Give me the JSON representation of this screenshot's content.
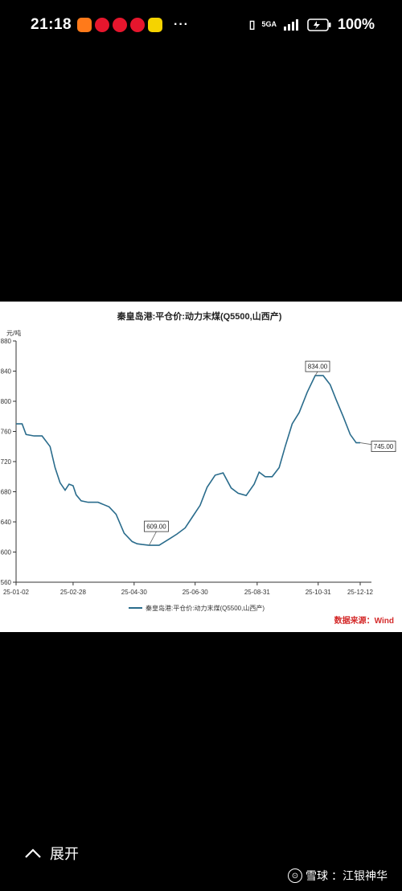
{
  "status_bar": {
    "time": "21:18",
    "notification_icons": [
      "heart-app-icon",
      "weibo-icon",
      "weibo-icon",
      "weibo-icon",
      "calendar-app-icon"
    ],
    "more": "···",
    "network": "5GA",
    "battery": "100%"
  },
  "chart_data": {
    "type": "line",
    "title": "秦皇岛港:平仓价:动力末煤(Q5500,山西产)",
    "ylabel": "元/吨",
    "xlabel": "",
    "ylim": [
      560,
      880
    ],
    "yticks": [
      560,
      600,
      640,
      680,
      720,
      760,
      800,
      840,
      880
    ],
    "ytick_labels": [
      "560",
      "600",
      "640",
      "680",
      "720",
      "760",
      "800",
      "840",
      "880"
    ],
    "xticks": [
      "25-01-02",
      "25-02-28",
      "25-04-30",
      "25-06-30",
      "25-08-31",
      "25-10-31",
      "25-12-12"
    ],
    "legend": "bottom",
    "grid": "off",
    "series": [
      {
        "name": "秦皇岛港:平仓价:动力末煤(Q5500,山西产)",
        "color": "#2a6c8c",
        "x": [
          "25-01-02",
          "25-01-08",
          "25-01-12",
          "25-01-20",
          "25-01-28",
          "25-02-05",
          "25-02-10",
          "25-02-15",
          "25-02-20",
          "25-02-24",
          "25-02-28",
          "25-03-03",
          "25-03-08",
          "25-03-15",
          "25-03-25",
          "25-04-05",
          "25-04-12",
          "25-04-20",
          "25-04-28",
          "25-05-03",
          "25-05-08",
          "25-05-15",
          "25-05-25",
          "25-06-05",
          "25-06-12",
          "25-06-20",
          "25-06-28",
          "25-07-05",
          "25-07-12",
          "25-07-20",
          "25-07-28",
          "25-08-05",
          "25-08-12",
          "25-08-20",
          "25-08-28",
          "25-09-02",
          "25-09-08",
          "25-09-15",
          "25-09-22",
          "25-09-28",
          "25-10-05",
          "25-10-12",
          "25-10-20",
          "25-10-28",
          "25-11-05",
          "25-11-12",
          "25-11-18",
          "25-11-25",
          "25-12-02",
          "25-12-08",
          "25-12-12"
        ],
        "values": [
          770,
          770,
          756,
          754,
          754,
          740,
          712,
          692,
          682,
          690,
          688,
          676,
          668,
          666,
          666,
          660,
          650,
          625,
          614,
          611,
          610,
          609,
          609,
          618,
          624,
          632,
          648,
          662,
          686,
          702,
          705,
          685,
          678,
          675,
          690,
          706,
          700,
          700,
          712,
          740,
          770,
          785,
          812,
          834,
          834,
          822,
          802,
          780,
          756,
          745,
          745
        ]
      }
    ],
    "annotations": [
      {
        "label": "834.00",
        "x": "25-10-28",
        "y": 834
      },
      {
        "label": "609.00",
        "x": "25-05-15",
        "y": 609
      },
      {
        "label": "745.00",
        "x": "25-12-12",
        "y": 745
      }
    ],
    "source": "数据来源：Wind"
  },
  "bottom": {
    "expand_label": "展开",
    "footer_brand": "雪球",
    "footer_author": "：江银神华"
  }
}
